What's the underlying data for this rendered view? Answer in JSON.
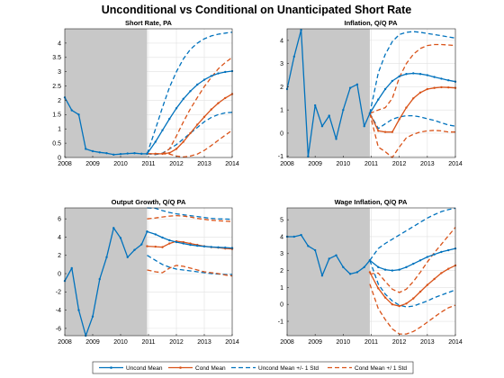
{
  "figure": {
    "title": "Unconditional vs Conditional on Unanticipated Short Rate"
  },
  "colors": {
    "uncond": "#0072BD",
    "cond": "#D95319",
    "shade": "#C8C8C8",
    "grid": "#E1E1E1"
  },
  "legend": {
    "entries": [
      {
        "label": "Uncond Mean",
        "series": "uncond_mean"
      },
      {
        "label": "Cond Mean",
        "series": "cond_mean"
      },
      {
        "label": "Uncond Mean +/- 1 Std",
        "series": "uncond_band"
      },
      {
        "label": "Cond Mean +/ 1 Std",
        "series": "cond_band"
      }
    ]
  },
  "chart_data": [
    {
      "type": "line",
      "title": "Short Rate, PA",
      "xlim": [
        2008,
        2014
      ],
      "ylim": [
        0,
        4.5
      ],
      "xticks": [
        2008,
        2009,
        2010,
        2011,
        2012,
        2013,
        2014
      ],
      "yticks": [
        0,
        0.5,
        1,
        1.5,
        2,
        2.5,
        3,
        3.5,
        4
      ],
      "grid": true,
      "shaded_region": [
        2008,
        2010.95
      ],
      "history": {
        "x": [
          2008.0,
          2008.25,
          2008.5,
          2008.75,
          2009.0,
          2009.25,
          2009.5,
          2009.75,
          2010.0,
          2010.25,
          2010.5,
          2010.75,
          2010.95
        ],
        "y": [
          2.1,
          1.65,
          1.5,
          0.3,
          0.22,
          0.18,
          0.15,
          0.1,
          0.12,
          0.14,
          0.15,
          0.13,
          0.13
        ]
      },
      "forecast": {
        "x": [
          2010.95,
          2011.25,
          2011.5,
          2011.75,
          2012.0,
          2012.25,
          2012.5,
          2012.75,
          2013.0,
          2013.25,
          2013.5,
          2013.75,
          2014.0
        ],
        "uncond_mean": [
          0.13,
          0.55,
          0.95,
          1.35,
          1.72,
          2.05,
          2.32,
          2.55,
          2.72,
          2.85,
          2.94,
          2.99,
          3.02
        ],
        "uncond_upper": [
          0.13,
          1.0,
          1.75,
          2.45,
          3.0,
          3.45,
          3.78,
          4.0,
          4.15,
          4.25,
          4.31,
          4.35,
          4.38
        ],
        "uncond_lower": [
          0.13,
          0.1,
          0.15,
          0.3,
          0.45,
          0.65,
          0.85,
          1.05,
          1.25,
          1.4,
          1.5,
          1.56,
          1.58
        ],
        "cond_mean": [
          0.13,
          0.13,
          0.13,
          0.16,
          0.3,
          0.55,
          0.85,
          1.15,
          1.42,
          1.68,
          1.9,
          2.08,
          2.22
        ],
        "cond_upper": [
          0.13,
          0.13,
          0.13,
          0.3,
          0.75,
          1.25,
          1.7,
          2.1,
          2.48,
          2.8,
          3.1,
          3.32,
          3.5
        ],
        "cond_lower": [
          0.13,
          0.13,
          0.13,
          0.12,
          0.05,
          0.02,
          0.05,
          0.12,
          0.25,
          0.42,
          0.6,
          0.78,
          0.95
        ]
      }
    },
    {
      "type": "line",
      "title": "Inflation, Q/Q PA",
      "xlim": [
        2008,
        2014
      ],
      "ylim": [
        -1.05,
        4.5
      ],
      "xticks": [
        2008,
        2009,
        2010,
        2011,
        2012,
        2013,
        2014
      ],
      "yticks": [
        -1,
        0,
        1,
        2,
        3,
        4
      ],
      "grid": true,
      "shaded_region": [
        2008,
        2010.95
      ],
      "history": {
        "x": [
          2008.0,
          2008.25,
          2008.5,
          2008.75,
          2009.0,
          2009.25,
          2009.5,
          2009.75,
          2010.0,
          2010.25,
          2010.5,
          2010.75,
          2010.95
        ],
        "y": [
          1.9,
          3.3,
          4.45,
          -1.0,
          1.2,
          0.3,
          0.75,
          -0.25,
          1.0,
          1.95,
          2.1,
          0.3,
          0.85
        ]
      },
      "forecast": {
        "x": [
          2010.95,
          2011.25,
          2011.5,
          2011.75,
          2012.0,
          2012.25,
          2012.5,
          2012.75,
          2013.0,
          2013.25,
          2013.5,
          2013.75,
          2014.0
        ],
        "uncond_mean": [
          0.85,
          1.45,
          1.9,
          2.25,
          2.45,
          2.55,
          2.58,
          2.55,
          2.5,
          2.42,
          2.35,
          2.28,
          2.22
        ],
        "uncond_upper": [
          0.85,
          2.6,
          3.4,
          3.95,
          4.25,
          4.35,
          4.38,
          4.35,
          4.3,
          4.25,
          4.2,
          4.15,
          4.1
        ],
        "uncond_lower": [
          0.85,
          0.2,
          0.4,
          0.6,
          0.7,
          0.75,
          0.75,
          0.7,
          0.62,
          0.55,
          0.45,
          0.35,
          0.3
        ],
        "cond_mean": [
          0.85,
          0.1,
          0.05,
          0.05,
          0.6,
          1.1,
          1.5,
          1.75,
          1.9,
          1.95,
          1.98,
          1.97,
          1.95
        ],
        "cond_upper": [
          0.85,
          1.0,
          1.1,
          1.5,
          2.4,
          3.0,
          3.4,
          3.65,
          3.78,
          3.82,
          3.82,
          3.8,
          3.78
        ],
        "cond_lower": [
          0.85,
          -0.6,
          -0.8,
          -1.05,
          -0.6,
          -0.2,
          -0.05,
          0.05,
          0.1,
          0.12,
          0.1,
          0.05,
          0.05
        ]
      }
    },
    {
      "type": "line",
      "title": "Output Growth, Q/Q PA",
      "xlim": [
        2008,
        2014
      ],
      "ylim": [
        -6.8,
        7.2
      ],
      "xticks": [
        2008,
        2009,
        2010,
        2011,
        2012,
        2013,
        2014
      ],
      "yticks": [
        -6,
        -4,
        -2,
        0,
        2,
        4,
        6
      ],
      "grid": true,
      "shaded_region": [
        2008,
        2010.95
      ],
      "history": {
        "x": [
          2008.0,
          2008.25,
          2008.5,
          2008.75,
          2009.0,
          2009.25,
          2009.5,
          2009.75,
          2010.0,
          2010.25,
          2010.5,
          2010.75,
          2010.95
        ],
        "y": [
          -0.8,
          0.6,
          -4.0,
          -6.8,
          -4.7,
          -0.6,
          1.8,
          5.0,
          3.9,
          1.8,
          2.6,
          3.2,
          4.6
        ]
      },
      "forecast": {
        "x": [
          2010.95,
          2011.25,
          2011.5,
          2011.75,
          2012.0,
          2012.25,
          2012.5,
          2012.75,
          2013.0,
          2013.25,
          2013.5,
          2013.75,
          2014.0
        ],
        "uncond_mean": [
          4.6,
          4.3,
          3.95,
          3.65,
          3.45,
          3.3,
          3.15,
          3.05,
          2.98,
          2.92,
          2.88,
          2.85,
          2.8
        ],
        "uncond_upper": [
          7.2,
          7.15,
          6.9,
          6.7,
          6.55,
          6.45,
          6.35,
          6.25,
          6.15,
          6.05,
          6.0,
          5.98,
          5.95
        ],
        "uncond_lower": [
          2.0,
          1.45,
          1.0,
          0.7,
          0.5,
          0.4,
          0.3,
          0.2,
          0.1,
          0.0,
          -0.05,
          -0.1,
          -0.1
        ],
        "cond_mean": [
          3.0,
          2.95,
          2.9,
          3.3,
          3.55,
          3.45,
          3.3,
          3.15,
          3.0,
          2.9,
          2.85,
          2.75,
          2.7
        ],
        "cond_upper": [
          6.0,
          6.1,
          6.2,
          6.3,
          6.35,
          6.3,
          6.2,
          6.05,
          5.95,
          5.85,
          5.8,
          5.75,
          5.7
        ],
        "cond_lower": [
          0.4,
          0.2,
          0.1,
          0.6,
          0.9,
          0.8,
          0.6,
          0.4,
          0.2,
          0.1,
          0.0,
          -0.15,
          -0.25
        ]
      }
    },
    {
      "type": "line",
      "title": "Wage Inflation, Q/Q PA",
      "xlim": [
        2008,
        2014
      ],
      "ylim": [
        -1.85,
        5.7
      ],
      "xticks": [
        2008,
        2009,
        2010,
        2011,
        2012,
        2013,
        2014
      ],
      "yticks": [
        -1,
        0,
        1,
        2,
        3,
        4,
        5
      ],
      "grid": true,
      "shaded_region": [
        2008,
        2010.95
      ],
      "history": {
        "x": [
          2008.0,
          2008.25,
          2008.5,
          2008.75,
          2009.0,
          2009.25,
          2009.5,
          2009.75,
          2010.0,
          2010.25,
          2010.5,
          2010.75,
          2010.95
        ],
        "y": [
          4.0,
          4.0,
          4.1,
          3.45,
          3.2,
          1.7,
          2.7,
          2.9,
          2.2,
          1.8,
          1.9,
          2.2,
          2.6
        ]
      },
      "forecast": {
        "x": [
          2010.95,
          2011.25,
          2011.5,
          2011.75,
          2012.0,
          2012.25,
          2012.5,
          2012.75,
          2013.0,
          2013.25,
          2013.5,
          2013.75,
          2014.0
        ],
        "uncond_mean": [
          2.6,
          2.2,
          2.05,
          2.0,
          2.05,
          2.2,
          2.4,
          2.6,
          2.8,
          2.95,
          3.1,
          3.2,
          3.3
        ],
        "uncond_upper": [
          2.6,
          3.3,
          3.6,
          3.85,
          4.1,
          4.35,
          4.6,
          4.85,
          5.1,
          5.3,
          5.48,
          5.6,
          5.68
        ],
        "uncond_lower": [
          2.6,
          1.2,
          0.6,
          0.2,
          -0.05,
          -0.15,
          -0.1,
          0.05,
          0.2,
          0.4,
          0.55,
          0.7,
          0.85
        ],
        "cond_mean": [
          1.9,
          0.95,
          0.4,
          0.0,
          -0.1,
          0.05,
          0.35,
          0.75,
          1.15,
          1.5,
          1.85,
          2.1,
          2.3
        ],
        "cond_upper": [
          1.8,
          1.85,
          1.35,
          0.9,
          0.7,
          0.9,
          1.35,
          1.9,
          2.5,
          3.05,
          3.55,
          4.05,
          4.55
        ],
        "cond_lower": [
          1.2,
          -0.25,
          -0.9,
          -1.45,
          -1.75,
          -1.75,
          -1.6,
          -1.35,
          -1.05,
          -0.75,
          -0.45,
          -0.2,
          -0.05
        ]
      }
    }
  ]
}
